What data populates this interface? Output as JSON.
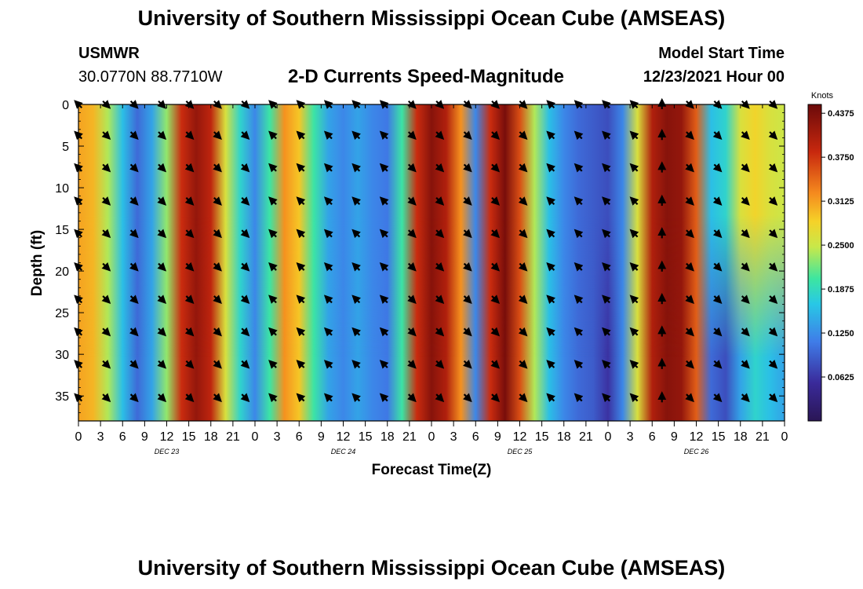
{
  "header": {
    "title": "University of Southern Mississippi Ocean Cube (AMSEAS)",
    "station": "USMWR",
    "coords": "30.0770N  88.7710W",
    "subtitle": "2-D Currents Speed-Magnitude",
    "model_start_label": "Model Start Time",
    "model_start_value": "12/23/2021 Hour 00"
  },
  "footer": {
    "title": "University of Southern Mississippi Ocean Cube (AMSEAS)"
  },
  "colors": {
    "low": "#2a1655",
    "high": "#6b0a0a",
    "arrow": "#000000"
  },
  "chart_data": {
    "type": "heatmap",
    "xlabel": "Forecast Time(Z)",
    "ylabel": "Depth (ft)",
    "x_hours_range": [
      0,
      72
    ],
    "ylim": [
      0,
      38
    ],
    "x_tick_labels": [
      "0",
      "3",
      "6",
      "9",
      "12",
      "15",
      "18",
      "21",
      "0",
      "3",
      "6",
      "9",
      "12",
      "15",
      "18",
      "21",
      "0",
      "3",
      "6",
      "9",
      "12",
      "15",
      "18",
      "21",
      "0",
      "3",
      "6",
      "9",
      "12",
      "15",
      "18",
      "21",
      "0"
    ],
    "y_ticks": [
      0,
      5,
      10,
      15,
      20,
      25,
      30,
      35
    ],
    "y_tick_labels": [
      "0",
      "5",
      "10",
      "15",
      "20",
      "25",
      "30",
      "35"
    ],
    "day_labels": [
      {
        "label": "DEC 23",
        "hour": 12
      },
      {
        "label": "DEC 24",
        "hour": 36
      },
      {
        "label": "DEC 25",
        "hour": 60
      },
      {
        "label": "DEC 26",
        "hour": 84
      }
    ],
    "colorbar": {
      "units": "Knots",
      "ticks": [
        "0.4375",
        "0.3750",
        "0.3125",
        "0.2500",
        "0.1875",
        "0.1250",
        "0.0625"
      ],
      "tick_values": [
        0.4375,
        0.375,
        0.3125,
        0.25,
        0.1875,
        0.125,
        0.0625
      ],
      "range": [
        0.0,
        0.45
      ]
    },
    "time_hours": [
      0,
      1.5,
      3,
      4.5,
      6,
      7.5,
      9,
      10.5,
      12,
      13.5,
      15,
      16.5,
      18,
      19.5,
      21,
      22.5,
      24,
      25.5,
      27,
      28.5,
      30,
      31.5,
      33,
      34.5,
      36,
      37.5,
      39,
      40.5,
      42,
      43.5,
      45,
      46.5,
      48,
      49.5,
      51,
      52.5,
      54,
      55.5,
      57,
      58.5,
      60,
      61.5,
      63,
      64.5,
      66,
      67.5,
      69,
      70.5,
      72,
      73.5,
      75,
      76.5,
      78,
      79.5,
      81,
      82.5,
      84,
      85.5,
      87,
      88.5,
      90,
      91.5,
      93,
      94.5,
      96
    ],
    "speed_upper_knots": [
      0.31,
      0.3,
      0.24,
      0.16,
      0.1,
      0.14,
      0.23,
      0.38,
      0.42,
      0.39,
      0.26,
      0.18,
      0.12,
      0.2,
      0.32,
      0.29,
      0.2,
      0.14,
      0.12,
      0.14,
      0.12,
      0.11,
      0.2,
      0.38,
      0.43,
      0.4,
      0.32,
      0.12,
      0.38,
      0.44,
      0.36,
      0.24,
      0.16,
      0.12,
      0.1,
      0.09,
      0.08,
      0.12,
      0.26,
      0.4,
      0.43,
      0.42,
      0.35,
      0.16,
      0.18,
      0.26,
      0.28,
      0.26,
      0.25,
      0.23,
      0.24,
      0.25,
      0.27,
      0.29,
      0.33,
      0.36,
      0.4,
      0.42,
      0.4,
      0.26,
      0.12,
      0.1,
      0.14,
      0.12,
      0.18
    ],
    "speed_lower_knots": [
      0.31,
      0.3,
      0.24,
      0.16,
      0.1,
      0.14,
      0.23,
      0.38,
      0.42,
      0.39,
      0.26,
      0.18,
      0.12,
      0.2,
      0.32,
      0.29,
      0.2,
      0.14,
      0.12,
      0.14,
      0.12,
      0.11,
      0.2,
      0.38,
      0.43,
      0.4,
      0.32,
      0.12,
      0.38,
      0.44,
      0.36,
      0.24,
      0.16,
      0.12,
      0.1,
      0.09,
      0.06,
      0.12,
      0.26,
      0.4,
      0.43,
      0.42,
      0.35,
      0.1,
      0.08,
      0.14,
      0.18,
      0.16,
      0.14,
      0.12,
      0.1,
      0.08,
      0.07,
      0.08,
      0.1,
      0.12,
      0.14,
      0.18,
      0.2,
      0.18,
      0.12,
      0.16,
      0.18,
      0.16,
      0.18
    ],
    "arrow_rows_depth_ft": [
      0,
      3.7,
      7.6,
      11.6,
      15.5,
      19.5,
      23.4,
      27.3,
      31.2,
      35.2
    ],
    "arrow_time_hours": [
      0,
      2.83,
      5.67,
      8.5,
      11.33,
      14.17,
      17,
      19.83,
      22.67,
      25.5,
      28.33,
      31.17,
      34,
      36.83,
      39.67,
      42.5,
      45.33,
      48.17,
      51,
      53.83,
      56.67,
      59.5,
      62.33,
      65.17,
      68,
      70.83,
      73.67,
      76.5,
      79.33,
      82.17,
      85,
      87.83,
      90.67,
      93.5
    ],
    "arrow_direction_deg": [
      315,
      135,
      135,
      135,
      135,
      135,
      135,
      315,
      315,
      315,
      315,
      315,
      135,
      135,
      135,
      135,
      135,
      315,
      315,
      315,
      315,
      0,
      135,
      135,
      135,
      135,
      315,
      45,
      45,
      0,
      90,
      90,
      315,
      315
    ]
  }
}
